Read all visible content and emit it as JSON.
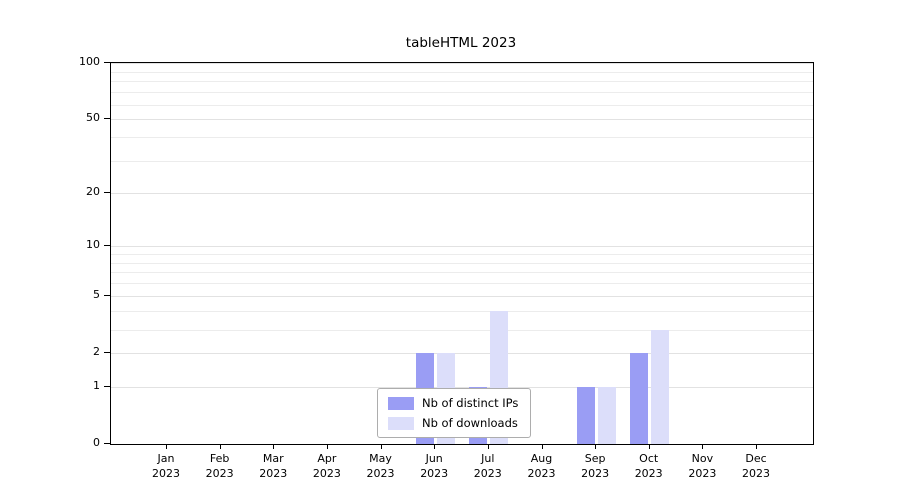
{
  "title": "tableHTML 2023",
  "chart_data": {
    "type": "bar",
    "title": "tableHTML 2023",
    "xlabel": "",
    "ylabel": "",
    "x_tick_months": [
      "Jan",
      "Feb",
      "Mar",
      "Apr",
      "May",
      "Jun",
      "Jul",
      "Aug",
      "Sep",
      "Oct",
      "Nov",
      "Dec"
    ],
    "x_tick_year": "2023",
    "series": [
      {
        "name": "Nb of distinct IPs",
        "color": "#9a9df4",
        "values": [
          0,
          0,
          0,
          0,
          0,
          2,
          1,
          0,
          1,
          2,
          0,
          0
        ]
      },
      {
        "name": "Nb of downloads",
        "color": "#dcdefa",
        "values": [
          0,
          0,
          0,
          0,
          0,
          2,
          4,
          0,
          1,
          3,
          0,
          0
        ]
      }
    ],
    "yticks": [
      0,
      1,
      2,
      5,
      10,
      20,
      50,
      100
    ],
    "minor_gridlines": [
      1,
      2,
      3,
      4,
      5,
      6,
      7,
      8,
      9,
      10,
      20,
      30,
      40,
      50,
      60,
      70,
      80,
      90,
      100
    ],
    "y_scale": "log1p",
    "ylim": [
      0,
      100
    ],
    "y_max": 100,
    "grid": true,
    "legend_position": "bottom-center"
  }
}
